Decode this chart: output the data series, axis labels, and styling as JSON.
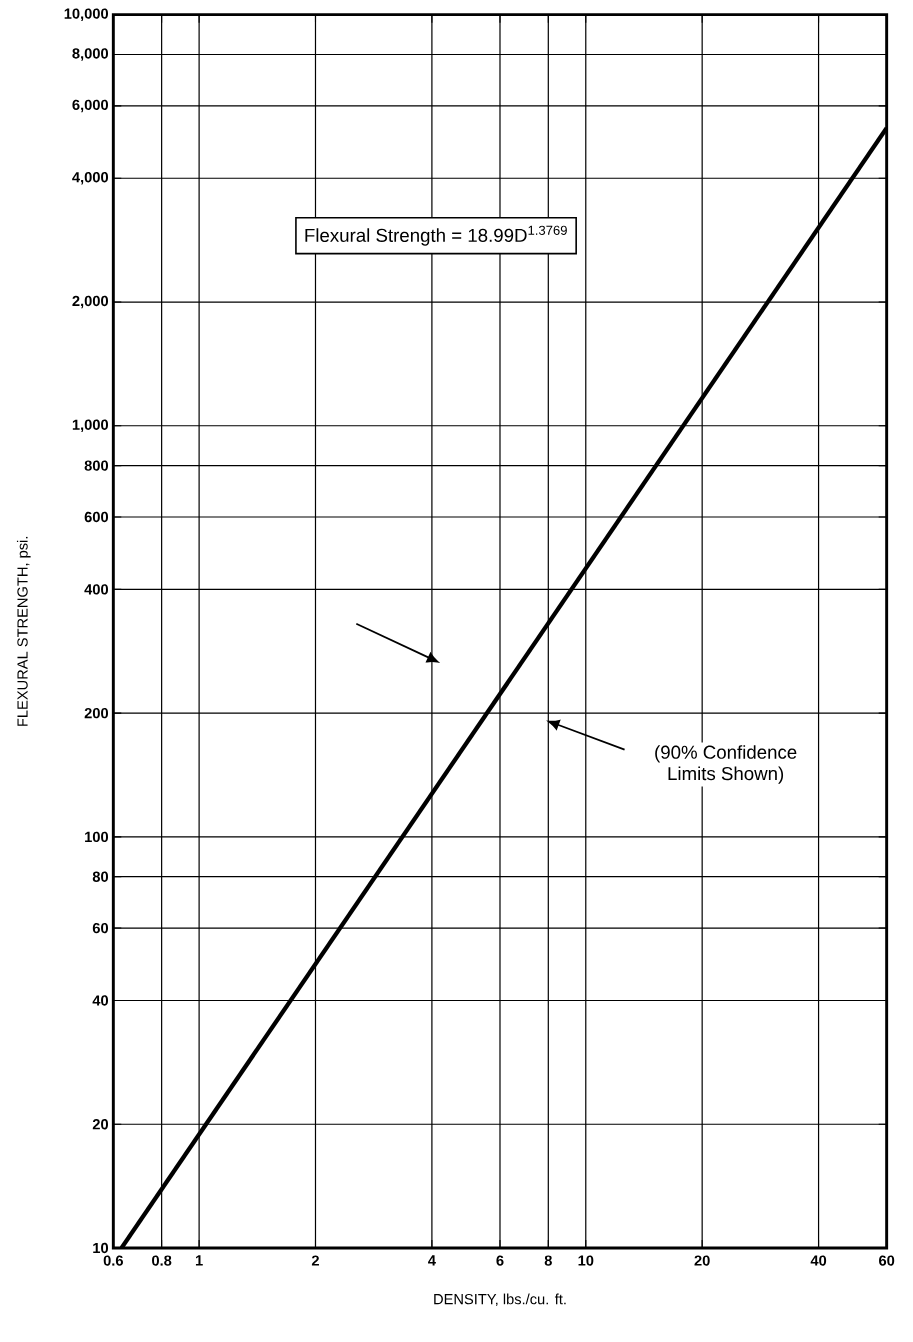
{
  "chart_data": {
    "type": "line",
    "xlabel": "DENSITY, lbs./cu. ft.",
    "ylabel": "FLEXURAL STRENGTH, psi.",
    "log": "xy",
    "grid": true,
    "marker": "none",
    "line_style": "solid",
    "xlim": [
      0.6,
      60
    ],
    "ylim": [
      10,
      10000
    ],
    "xticks": [
      0.6,
      0.8,
      1,
      2,
      4,
      6,
      8,
      10,
      20,
      40,
      60
    ],
    "yticks": [
      10,
      20,
      40,
      60,
      80,
      100,
      200,
      400,
      600,
      800,
      {
        "value": 1000,
        "label": "1,000"
      },
      {
        "value": 2000,
        "label": "2,000"
      },
      {
        "value": 4000,
        "label": "4,000"
      },
      {
        "value": 6000,
        "label": "6,000"
      },
      {
        "value": 8000,
        "label": "8,000"
      },
      {
        "value": 10000,
        "label": "10,000"
      }
    ],
    "x": [
      0.63,
      60
    ],
    "series": [
      {
        "color": "#000000",
        "values": [
          10,
          5300
        ]
      }
    ],
    "annotations": [
      "Flexural Strength = 18.99D$^{1.3769}$",
      "(90% Confidence Limits Shown)"
    ]
  }
}
